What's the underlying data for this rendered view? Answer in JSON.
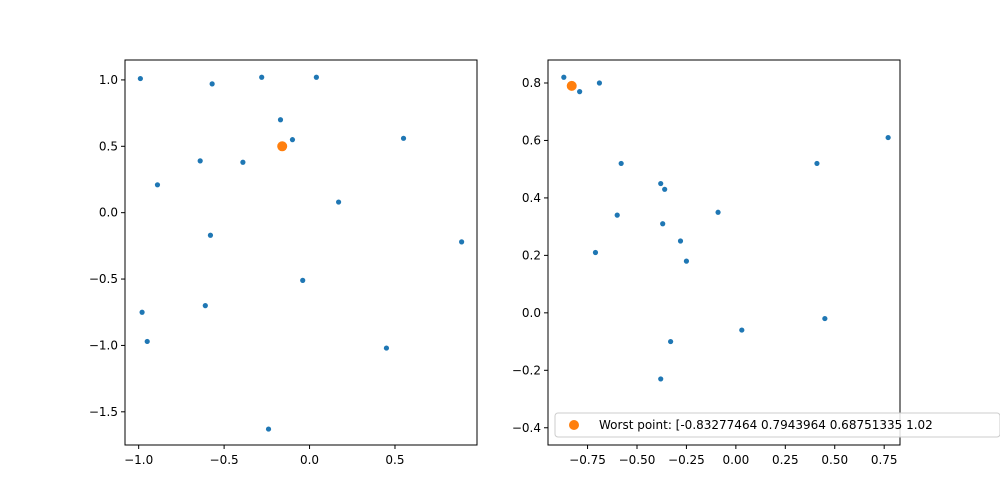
{
  "colors": {
    "series": "#1f77b4",
    "worst": "#ff7f0e",
    "axes": "#000000",
    "legend_border": "#cccccc"
  },
  "chart_data": [
    {
      "type": "scatter",
      "xlim": [
        -1.08,
        0.98
      ],
      "ylim": [
        -1.75,
        1.15
      ],
      "xticks": [
        -1.0,
        -0.5,
        0.0,
        0.5
      ],
      "xtick_labels": [
        "−1.0",
        "−0.5",
        "0.0",
        "0.5"
      ],
      "yticks": [
        -1.5,
        -1.0,
        -0.5,
        0.0,
        0.5,
        1.0
      ],
      "ytick_labels": [
        "−1.5",
        "−1.0",
        "−0.5",
        "0.0",
        "0.5",
        "1.0"
      ],
      "grid": false,
      "series": [
        {
          "x": [
            -0.99,
            -0.57,
            -0.28,
            0.04,
            -0.17,
            -0.1,
            0.55,
            -0.64,
            -0.39,
            -0.89,
            0.17,
            -0.58,
            0.89,
            -0.04,
            -0.61,
            -0.98,
            -0.95,
            0.45,
            -0.24
          ],
          "y": [
            1.01,
            0.97,
            1.02,
            1.02,
            0.7,
            0.55,
            0.56,
            0.39,
            0.38,
            0.21,
            0.08,
            -0.17,
            -0.22,
            -0.51,
            -0.7,
            -0.75,
            -0.97,
            -1.02,
            -1.63
          ]
        },
        {
          "x": [
            -0.16
          ],
          "y": [
            0.5
          ]
        }
      ]
    },
    {
      "type": "scatter",
      "xlim": [
        -0.95,
        0.83
      ],
      "ylim": [
        -0.46,
        0.88
      ],
      "xticks": [
        -0.75,
        -0.5,
        -0.25,
        0.0,
        0.25,
        0.5,
        0.75
      ],
      "xtick_labels": [
        "−0.75",
        "−0.50",
        "−0.25",
        "0.00",
        "0.25",
        "0.50",
        "0.75"
      ],
      "yticks": [
        -0.4,
        -0.2,
        0.0,
        0.2,
        0.4,
        0.6,
        0.8
      ],
      "ytick_labels": [
        "−0.4",
        "−0.2",
        "0.0",
        "0.2",
        "0.4",
        "0.6",
        "0.8"
      ],
      "grid": false,
      "legend_placement": "lower-right",
      "series": [
        {
          "x": [
            -0.87,
            -0.79,
            -0.69,
            0.77,
            -0.58,
            0.41,
            -0.38,
            -0.36,
            -0.6,
            -0.09,
            -0.37,
            -0.28,
            -0.71,
            -0.25,
            0.03,
            0.45,
            -0.33,
            -0.38
          ],
          "y": [
            0.82,
            0.77,
            0.8,
            0.61,
            0.52,
            0.52,
            0.45,
            0.43,
            0.34,
            0.35,
            0.31,
            0.25,
            0.21,
            0.18,
            -0.06,
            -0.02,
            -0.1,
            -0.23
          ]
        },
        {
          "name": "Worst point: [-0.83277464  0.7943964   0.68751335  1.02",
          "x": [
            -0.83
          ],
          "y": [
            0.79
          ]
        }
      ]
    }
  ]
}
